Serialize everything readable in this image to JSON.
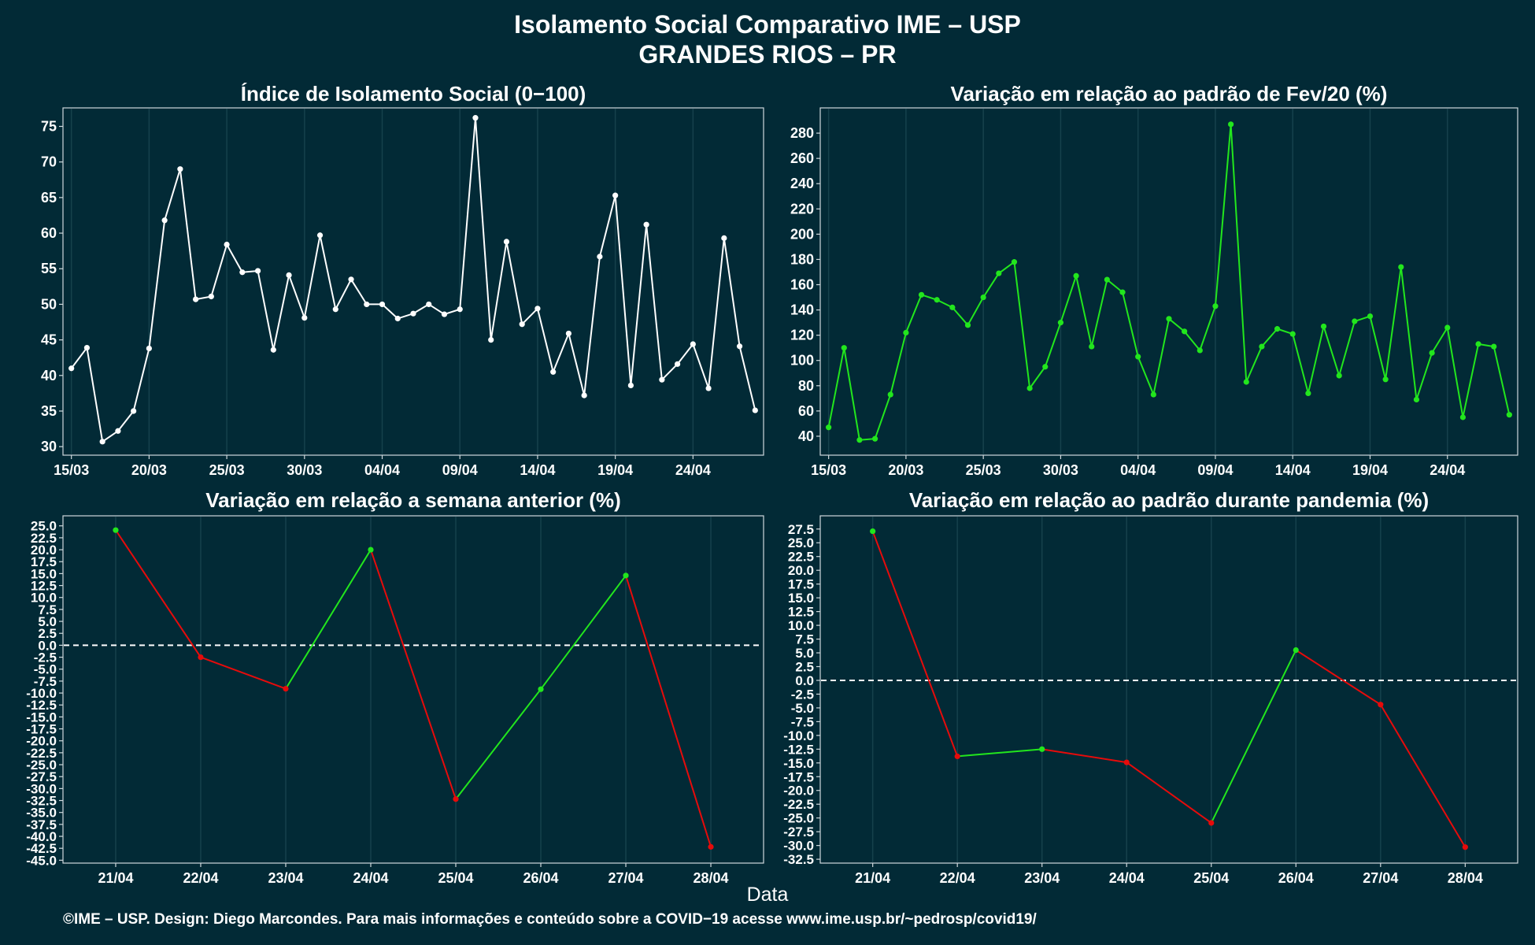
{
  "header": {
    "title_line1": "Isolamento Social Comparativo IME – USP",
    "title_line2": "GRANDES RIOS – PR"
  },
  "x_axis_label": "Data",
  "footer": "©IME – USP. Design: Diego Marcondes. Para mais informações e conteúdo sobre a COVID−19 acesse www.ime.usp.br/~pedrosp/covid19/",
  "colors": {
    "background": "#022a36",
    "panel": "#022a36",
    "border": "#cfd8dc",
    "white": "#ffffff",
    "green": "#22e61d",
    "red": "#e60b0b",
    "grid": "#16414c"
  },
  "chart_data": [
    {
      "type": "line",
      "title": "Índice de Isolamento Social (0−100)",
      "x": [
        "15/03",
        "16/03",
        "17/03",
        "18/03",
        "19/03",
        "20/03",
        "21/03",
        "22/03",
        "23/03",
        "24/03",
        "25/03",
        "26/03",
        "27/03",
        "28/03",
        "29/03",
        "30/03",
        "31/03",
        "01/04",
        "02/04",
        "03/04",
        "04/04",
        "05/04",
        "06/04",
        "07/04",
        "08/04",
        "09/04",
        "10/04",
        "11/04",
        "12/04",
        "13/04",
        "14/04",
        "15/04",
        "16/04",
        "17/04",
        "18/04",
        "19/04",
        "20/04",
        "21/04",
        "22/04",
        "23/04",
        "24/04",
        "25/04",
        "26/04",
        "27/04",
        "28/04"
      ],
      "x_ticks": [
        "15/03",
        "20/03",
        "25/03",
        "30/03",
        "04/04",
        "09/04",
        "14/04",
        "19/04",
        "24/04"
      ],
      "values": [
        41.0,
        43.9,
        30.7,
        32.2,
        35.0,
        43.8,
        61.8,
        69.0,
        50.7,
        51.1,
        58.4,
        54.5,
        54.7,
        43.6,
        54.1,
        48.1,
        59.7,
        49.3,
        53.5,
        50.0,
        50.0,
        48.0,
        48.7,
        50.0,
        48.6,
        49.3,
        76.2,
        45.0,
        58.8,
        47.2,
        49.4,
        40.5,
        45.9,
        37.2,
        56.7,
        65.3,
        38.6,
        61.2,
        39.4,
        41.6,
        44.4,
        38.2,
        59.3,
        44.1,
        35.1
      ],
      "ylim": [
        28.8,
        77.6
      ],
      "y_ticks": [
        30,
        35,
        40,
        45,
        50,
        55,
        60,
        65,
        70,
        75
      ],
      "series_color": "white"
    },
    {
      "type": "line",
      "title": "Variação em relação ao padrão de Fev/20 (%)",
      "x": [
        "15/03",
        "16/03",
        "17/03",
        "18/03",
        "19/03",
        "20/03",
        "21/03",
        "22/03",
        "23/03",
        "24/03",
        "25/03",
        "26/03",
        "27/03",
        "28/03",
        "29/03",
        "30/03",
        "31/03",
        "01/04",
        "02/04",
        "03/04",
        "04/04",
        "05/04",
        "06/04",
        "07/04",
        "08/04",
        "09/04",
        "10/04",
        "11/04",
        "12/04",
        "13/04",
        "14/04",
        "15/04",
        "16/04",
        "17/04",
        "18/04",
        "19/04",
        "20/04",
        "21/04",
        "22/04",
        "23/04",
        "24/04",
        "25/04",
        "26/04",
        "27/04",
        "28/04"
      ],
      "x_ticks": [
        "15/03",
        "20/03",
        "25/03",
        "30/03",
        "04/04",
        "09/04",
        "14/04",
        "19/04",
        "24/04"
      ],
      "values": [
        47,
        110,
        37,
        38,
        73,
        122,
        152,
        148,
        142,
        128,
        150,
        169,
        178,
        78,
        95,
        130,
        167,
        111,
        164,
        154,
        103,
        73,
        133,
        123,
        108,
        143,
        287,
        83,
        111,
        125,
        121,
        74,
        127,
        88,
        131,
        135,
        85,
        174,
        69,
        106,
        126,
        55,
        113,
        111,
        57
      ],
      "ylim": [
        25,
        300
      ],
      "y_ticks": [
        40,
        60,
        80,
        100,
        120,
        140,
        160,
        180,
        200,
        220,
        240,
        260,
        280
      ],
      "series_color": "green"
    },
    {
      "type": "line",
      "title": "Variação em relação a semana anterior (%)",
      "x": [
        "21/04",
        "22/04",
        "23/04",
        "24/04",
        "25/04",
        "26/04",
        "27/04",
        "28/04"
      ],
      "values": [
        24.1,
        -2.5,
        -9.1,
        20.0,
        -32.2,
        -9.2,
        14.6,
        -42.2
      ],
      "ylim": [
        -45.6,
        27.1
      ],
      "y_ticks": [
        25.0,
        22.5,
        20.0,
        17.5,
        15.0,
        12.5,
        10.0,
        7.5,
        5.0,
        2.5,
        0.0,
        -2.5,
        -5.0,
        -7.5,
        -10.0,
        -12.5,
        -15.0,
        -17.5,
        -20.0,
        -22.5,
        -25.0,
        -27.5,
        -30.0,
        -32.5,
        -35.0,
        -37.5,
        -40.0,
        -42.5,
        -45.0
      ],
      "reference_line": 0,
      "colors": "green for rising segments, red for falling segments"
    },
    {
      "type": "line",
      "title": "Variação em relação ao padrão durante pandemia (%)",
      "x": [
        "21/04",
        "22/04",
        "23/04",
        "24/04",
        "25/04",
        "26/04",
        "27/04",
        "28/04"
      ],
      "values": [
        27.1,
        -13.8,
        -12.5,
        -14.9,
        -25.9,
        5.5,
        -4.4,
        -30.3
      ],
      "ylim": [
        -33.2,
        29.9
      ],
      "y_ticks": [
        27.5,
        25.0,
        22.5,
        20.0,
        17.5,
        15.0,
        12.5,
        10.0,
        7.5,
        5.0,
        2.5,
        0.0,
        -2.5,
        -5.0,
        -7.5,
        -10.0,
        -12.5,
        -15.0,
        -17.5,
        -20.0,
        -22.5,
        -25.0,
        -27.5,
        -30.0,
        -32.5
      ],
      "reference_line": 0,
      "colors": "green for rising segments, red for falling segments"
    }
  ]
}
